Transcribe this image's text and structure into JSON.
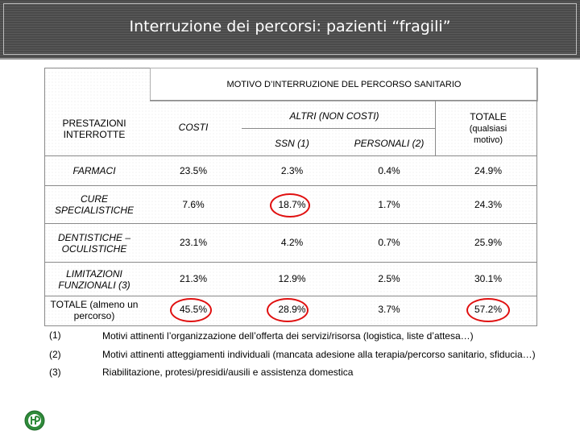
{
  "title": "Interruzione dei percorsi: pazienti “fragili”",
  "table": {
    "group_header": "MOTIVO D’INTERRUZIONE DEL PERCORSO SANITARIO",
    "row_header": "PRESTAZIONI INTERROTTE",
    "col_costi": "COSTI",
    "col_altri": "ALTRI (NON COSTI)",
    "col_ssn": "SSN (1)",
    "col_personali": "PERSONALI (2)",
    "col_totale": "TOTALE",
    "col_totale_sub": "(qualsiasi motivo)",
    "rows": [
      {
        "label": "FARMACI",
        "costi": "23.5%",
        "ssn": "2.3%",
        "personali": "0.4%",
        "totale": "24.9%"
      },
      {
        "label": "CURE SPECIALISTICHE",
        "costi": "7.6%",
        "ssn": "18.7%",
        "personali": "1.7%",
        "totale": "24.3%"
      },
      {
        "label": "DENTISTICHE – OCULISTICHE",
        "costi": "23.1%",
        "ssn": "4.2%",
        "personali": "0.7%",
        "totale": "25.9%"
      },
      {
        "label": "LIMITAZIONI FUNZIONALI (3)",
        "costi": "21.3%",
        "ssn": "12.9%",
        "personali": "2.5%",
        "totale": "30.1%"
      },
      {
        "label": "TOTALE (almeno un percorso)",
        "costi": "45.5%",
        "ssn": "28.9%",
        "personali": "3.7%",
        "totale": "57.2%"
      }
    ]
  },
  "notes": [
    {
      "num": "(1)",
      "text": "Motivi attinenti l’organizzazione dell’offerta dei servizi/risorsa (logistica, liste d’attesa…)"
    },
    {
      "num": "(2)",
      "text": "Motivi attinenti atteggiamenti individuali (mancata adesione alla terapia/percorso sanitario, sfiducia…)"
    },
    {
      "num": "(3)",
      "text": "Riabilitazione, protesi/presidi/ausili e assistenza domestica"
    }
  ],
  "colors": {
    "highlight": "#e01010",
    "titlebar": "#505050"
  },
  "icons": {
    "logo": "isfol-logo-icon"
  }
}
